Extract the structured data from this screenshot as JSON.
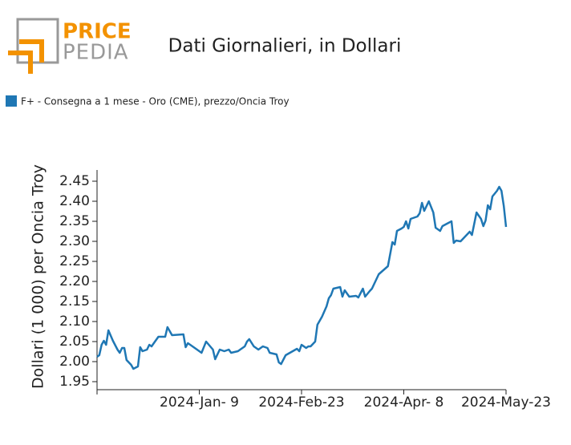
{
  "logo": {
    "top": "PRICE",
    "bottom": "PEDIA"
  },
  "chart_data": {
    "type": "line",
    "title": "Dati Giornalieri, in Dollari",
    "ylabel": "Dollari (1 000) per Oncia Troy",
    "legend": "top-left",
    "x": [
      "2023-11-25",
      "2023-11-26",
      "2023-11-27",
      "2023-11-28",
      "2023-11-29",
      "2023-11-30",
      "2023-12-02",
      "2023-12-04",
      "2023-12-05",
      "2023-12-06",
      "2023-12-07",
      "2023-12-08",
      "2023-12-10",
      "2023-12-11",
      "2023-12-13",
      "2023-12-14",
      "2023-12-15",
      "2023-12-17",
      "2023-12-18",
      "2023-12-19",
      "2023-12-20",
      "2023-12-22",
      "2023-12-25",
      "2023-12-26",
      "2023-12-28",
      "2024-01-02",
      "2024-01-03",
      "2024-01-04",
      "2024-01-05",
      "2024-01-08",
      "2024-01-10",
      "2024-01-12",
      "2024-01-15",
      "2024-01-16",
      "2024-01-18",
      "2024-01-20",
      "2024-01-22",
      "2024-01-23",
      "2024-01-26",
      "2024-01-27",
      "2024-01-29",
      "2024-01-30",
      "2024-01-31",
      "2024-02-02",
      "2024-02-04",
      "2024-02-06",
      "2024-02-08",
      "2024-02-09",
      "2024-02-12",
      "2024-02-13",
      "2024-02-14",
      "2024-02-16",
      "2024-02-21",
      "2024-02-22",
      "2024-02-23",
      "2024-02-25",
      "2024-02-26",
      "2024-02-27",
      "2024-02-29",
      "2024-03-01",
      "2024-03-03",
      "2024-03-05",
      "2024-03-06",
      "2024-03-07",
      "2024-03-08",
      "2024-03-11",
      "2024-03-12",
      "2024-03-13",
      "2024-03-15",
      "2024-03-18",
      "2024-03-19",
      "2024-03-21",
      "2024-03-22",
      "2024-03-24",
      "2024-03-25",
      "2024-03-28",
      "2024-04-01",
      "2024-04-03",
      "2024-04-04",
      "2024-04-05",
      "2024-04-07",
      "2024-04-08",
      "2024-04-09",
      "2024-04-10",
      "2024-04-11",
      "2024-04-14",
      "2024-04-15",
      "2024-04-16",
      "2024-04-17",
      "2024-04-19",
      "2024-04-21",
      "2024-04-22",
      "2024-04-24",
      "2024-04-25",
      "2024-04-27",
      "2024-04-29",
      "2024-04-30",
      "2024-05-01",
      "2024-05-03",
      "2024-05-05",
      "2024-05-07",
      "2024-05-08",
      "2024-05-10",
      "2024-05-12",
      "2024-05-13",
      "2024-05-14",
      "2024-05-15",
      "2024-05-16",
      "2024-05-17",
      "2024-05-19",
      "2024-05-20",
      "2024-05-21",
      "2024-05-22",
      "2024-05-23"
    ],
    "series": [
      {
        "name": "F+ - Consegna a 1 mese - Oro (CME), prezzo/Oncia Troy",
        "color": "#1f77b4",
        "values": [
          2.012,
          2.016,
          2.042,
          2.052,
          2.042,
          2.078,
          2.052,
          2.03,
          2.022,
          2.034,
          2.034,
          2.004,
          1.992,
          1.982,
          1.988,
          2.036,
          2.026,
          2.03,
          2.042,
          2.038,
          2.046,
          2.062,
          2.062,
          2.086,
          2.066,
          2.068,
          2.036,
          2.046,
          2.042,
          2.03,
          2.022,
          2.05,
          2.03,
          2.006,
          2.03,
          2.026,
          2.03,
          2.022,
          2.026,
          2.03,
          2.038,
          2.05,
          2.056,
          2.038,
          2.03,
          2.038,
          2.034,
          2.022,
          2.018,
          1.998,
          1.994,
          2.016,
          2.032,
          2.026,
          2.042,
          2.034,
          2.038,
          2.038,
          2.05,
          2.092,
          2.112,
          2.138,
          2.158,
          2.166,
          2.182,
          2.186,
          2.162,
          2.178,
          2.162,
          2.164,
          2.16,
          2.182,
          2.162,
          2.176,
          2.182,
          2.218,
          2.238,
          2.298,
          2.292,
          2.326,
          2.332,
          2.336,
          2.35,
          2.332,
          2.356,
          2.362,
          2.37,
          2.396,
          2.376,
          2.4,
          2.372,
          2.334,
          2.326,
          2.338,
          2.344,
          2.35,
          2.296,
          2.302,
          2.3,
          2.312,
          2.324,
          2.316,
          2.372,
          2.356,
          2.338,
          2.352,
          2.39,
          2.38,
          2.412,
          2.426,
          2.436,
          2.426,
          2.388,
          2.336
        ]
      }
    ],
    "xlim": [
      "2023-11-25",
      "2024-05-23"
    ],
    "xticks": [
      {
        "value": "2024-01-09",
        "label": "2024-Jan- 9"
      },
      {
        "value": "2024-02-23",
        "label": "2024-Feb-23"
      },
      {
        "value": "2024-04-08",
        "label": "2024-Apr- 8"
      },
      {
        "value": "2024-05-23",
        "label": "2024-May-23"
      }
    ],
    "ylim": [
      1.93,
      2.478
    ],
    "yticks": [
      1.95,
      {
        "value": 2,
        "label": "2.00"
      },
      2.05,
      {
        "value": 2.1,
        "label": "2.10"
      },
      2.15,
      {
        "value": 2.2,
        "label": "2.20"
      },
      2.25,
      {
        "value": 2.3,
        "label": "2.30"
      },
      2.35,
      {
        "value": 2.4,
        "label": "2.40"
      },
      2.45
    ],
    "grid": false
  }
}
